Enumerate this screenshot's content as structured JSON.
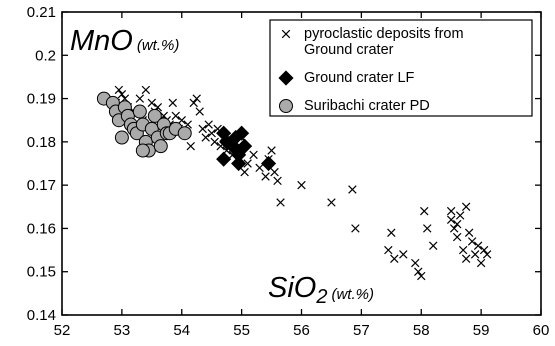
{
  "chart_data": {
    "type": "scatter",
    "title": "",
    "xlabel": {
      "main": "SiO",
      "sub": "2",
      "unit": "(wt.%)"
    },
    "ylabel": {
      "main": "MnO",
      "unit": "(wt.%)"
    },
    "xlim": [
      52,
      60
    ],
    "ylim": [
      0.14,
      0.21
    ],
    "x_ticks": [
      52,
      53,
      54,
      55,
      56,
      57,
      58,
      59,
      60
    ],
    "y_ticks": [
      0.14,
      0.15,
      0.16,
      0.17,
      0.18,
      0.19,
      0.2,
      0.21
    ],
    "x_tick_labels": [
      "52",
      "53",
      "54",
      "55",
      "56",
      "57",
      "58",
      "59",
      "60"
    ],
    "y_tick_labels": [
      "0.14",
      "0.15",
      "0.16",
      "0.17",
      "0.18",
      "0.19",
      "0.2",
      "0.21"
    ],
    "grid": false,
    "legend_position": "top-right",
    "legend": [
      {
        "marker": "x",
        "lines": [
          "pyroclastic deposits from",
          "Ground crater"
        ]
      },
      {
        "marker": "diamond",
        "lines": [
          "Ground crater LF"
        ]
      },
      {
        "marker": "circle",
        "lines": [
          "Suribachi crater PD"
        ]
      }
    ],
    "series": [
      {
        "marker": "x",
        "color": "#000000",
        "points": [
          [
            52.95,
            0.192
          ],
          [
            53.0,
            0.191
          ],
          [
            53.05,
            0.19
          ],
          [
            52.9,
            0.189
          ],
          [
            53.1,
            0.188
          ],
          [
            53.2,
            0.187
          ],
          [
            53.3,
            0.19
          ],
          [
            53.4,
            0.192
          ],
          [
            53.5,
            0.189
          ],
          [
            53.55,
            0.187
          ],
          [
            53.6,
            0.188
          ],
          [
            53.7,
            0.186
          ],
          [
            53.75,
            0.185
          ],
          [
            53.8,
            0.184
          ],
          [
            53.85,
            0.189
          ],
          [
            53.9,
            0.186
          ],
          [
            53.95,
            0.183
          ],
          [
            54.0,
            0.185
          ],
          [
            54.05,
            0.182
          ],
          [
            54.1,
            0.184
          ],
          [
            54.2,
            0.189
          ],
          [
            54.25,
            0.19
          ],
          [
            54.3,
            0.187
          ],
          [
            54.35,
            0.183
          ],
          [
            54.4,
            0.181
          ],
          [
            54.45,
            0.184
          ],
          [
            54.5,
            0.182
          ],
          [
            54.55,
            0.18
          ],
          [
            54.6,
            0.183
          ],
          [
            54.65,
            0.179
          ],
          [
            54.7,
            0.181
          ],
          [
            54.75,
            0.178
          ],
          [
            54.8,
            0.179
          ],
          [
            54.85,
            0.177
          ],
          [
            54.9,
            0.18
          ],
          [
            54.95,
            0.176
          ],
          [
            55.0,
            0.181
          ],
          [
            55.05,
            0.173
          ],
          [
            55.1,
            0.175
          ],
          [
            55.2,
            0.177
          ],
          [
            55.3,
            0.174
          ],
          [
            55.4,
            0.172
          ],
          [
            55.45,
            0.176
          ],
          [
            55.5,
            0.178
          ],
          [
            55.55,
            0.173
          ],
          [
            55.6,
            0.171
          ],
          [
            55.65,
            0.166
          ],
          [
            56.0,
            0.17
          ],
          [
            56.5,
            0.166
          ],
          [
            56.85,
            0.169
          ],
          [
            56.9,
            0.16
          ],
          [
            57.5,
            0.159
          ],
          [
            57.45,
            0.155
          ],
          [
            57.55,
            0.153
          ],
          [
            57.7,
            0.154
          ],
          [
            57.9,
            0.152
          ],
          [
            57.95,
            0.15
          ],
          [
            58.0,
            0.149
          ],
          [
            58.05,
            0.164
          ],
          [
            58.1,
            0.16
          ],
          [
            58.2,
            0.156
          ],
          [
            58.5,
            0.164
          ],
          [
            58.5,
            0.162
          ],
          [
            58.55,
            0.16
          ],
          [
            58.6,
            0.158
          ],
          [
            58.65,
            0.163
          ],
          [
            58.6,
            0.161
          ],
          [
            58.75,
            0.165
          ],
          [
            58.7,
            0.155
          ],
          [
            58.75,
            0.153
          ],
          [
            58.8,
            0.159
          ],
          [
            58.85,
            0.157
          ],
          [
            58.9,
            0.154
          ],
          [
            58.95,
            0.156
          ],
          [
            59.0,
            0.152
          ],
          [
            59.05,
            0.155
          ],
          [
            59.1,
            0.154
          ],
          [
            53.65,
            0.181
          ],
          [
            53.35,
            0.185
          ],
          [
            54.15,
            0.179
          ]
        ]
      },
      {
        "marker": "diamond",
        "color": "#000000",
        "points": [
          [
            54.7,
            0.182
          ],
          [
            54.75,
            0.18
          ],
          [
            54.7,
            0.176
          ],
          [
            54.85,
            0.179
          ],
          [
            54.9,
            0.181
          ],
          [
            54.95,
            0.177
          ],
          [
            55.0,
            0.182
          ],
          [
            55.05,
            0.179
          ],
          [
            54.95,
            0.175
          ],
          [
            55.45,
            0.175
          ]
        ]
      },
      {
        "marker": "circle",
        "color": "#aaaaaa",
        "points": [
          [
            52.7,
            0.19
          ],
          [
            52.85,
            0.189
          ],
          [
            52.9,
            0.187
          ],
          [
            52.95,
            0.185
          ],
          [
            53.0,
            0.181
          ],
          [
            53.05,
            0.188
          ],
          [
            53.1,
            0.186
          ],
          [
            53.15,
            0.184
          ],
          [
            53.2,
            0.183
          ],
          [
            53.25,
            0.182
          ],
          [
            53.3,
            0.187
          ],
          [
            53.35,
            0.184
          ],
          [
            53.4,
            0.18
          ],
          [
            53.45,
            0.178
          ],
          [
            53.5,
            0.183
          ],
          [
            53.55,
            0.186
          ],
          [
            53.6,
            0.181
          ],
          [
            53.65,
            0.179
          ],
          [
            53.7,
            0.184
          ],
          [
            53.75,
            0.182
          ],
          [
            53.8,
            0.182
          ],
          [
            53.9,
            0.183
          ],
          [
            54.05,
            0.182
          ],
          [
            53.35,
            0.178
          ]
        ]
      }
    ]
  }
}
